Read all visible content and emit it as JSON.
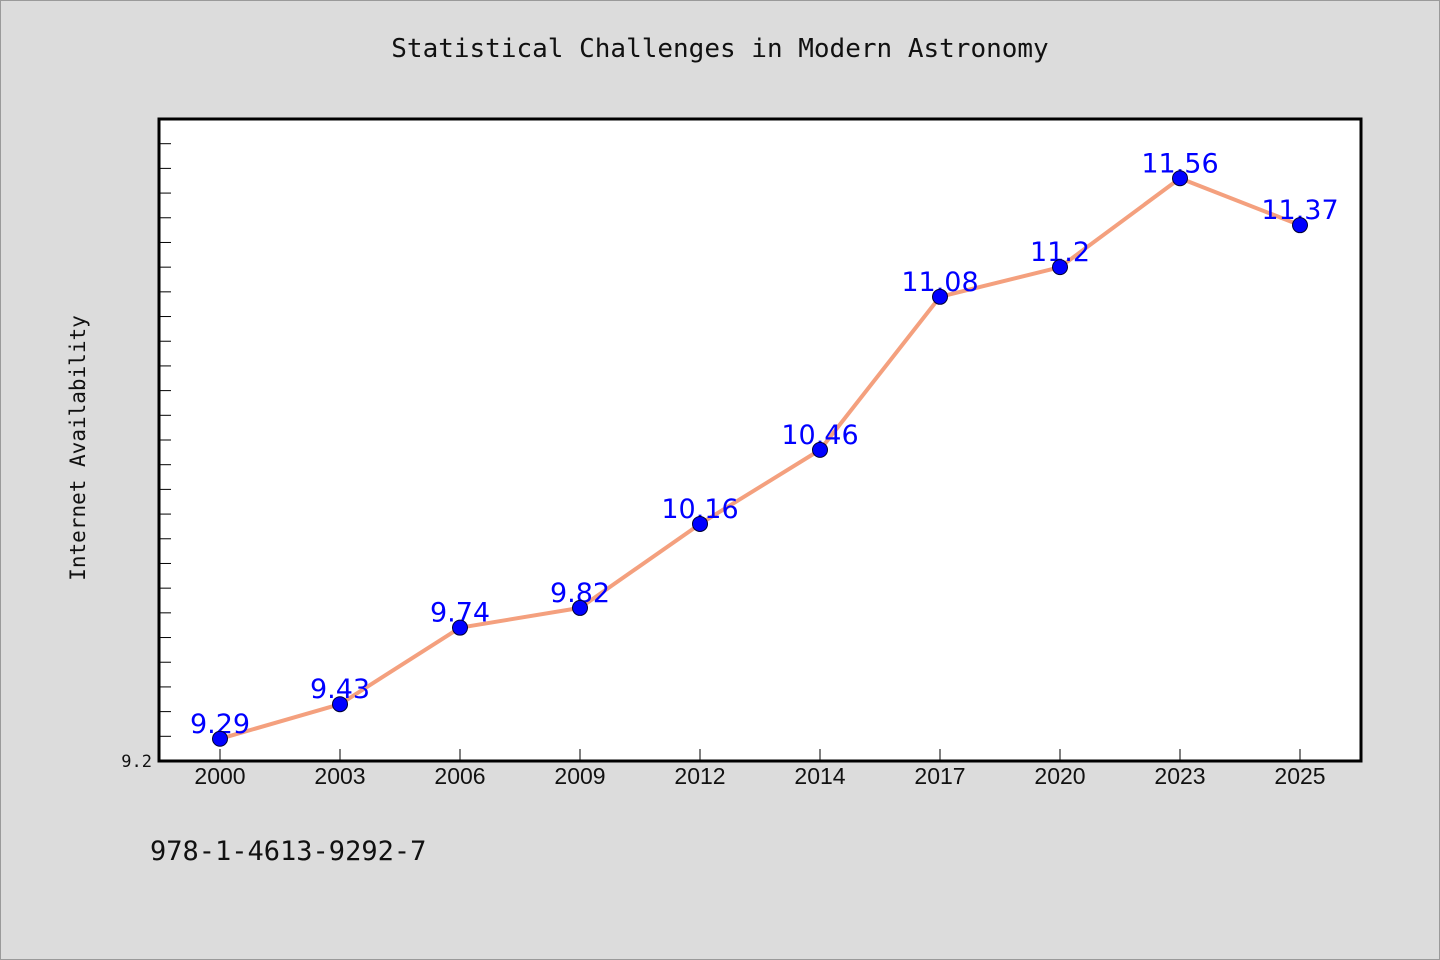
{
  "chart_data": {
    "type": "line",
    "title": "Statistical Challenges in Modern Astronomy",
    "xlabel": "",
    "ylabel": "Internet Availability",
    "categories": [
      "2000",
      "2003",
      "2006",
      "2009",
      "2012",
      "2014",
      "2017",
      "2020",
      "2023",
      "2025"
    ],
    "series": [
      {
        "values": [
          9.29,
          9.43,
          9.74,
          9.82,
          10.16,
          10.46,
          11.08,
          11.2,
          11.56,
          11.37
        ],
        "data_labels": [
          "9.29",
          "9.43",
          "9.74",
          "9.82",
          "10.16",
          "10.46",
          "11.08",
          "11.2",
          "11.56",
          "11.37"
        ]
      }
    ],
    "ylim": [
      9.2,
      11.8
    ],
    "y_tick_labels": [
      "9.2"
    ],
    "grid": false,
    "legend": "none",
    "colors": {
      "line": "#f4a07e",
      "marker": "#0000ff",
      "data_label": "#0000ff",
      "plot_bg": "#ffffff",
      "page_bg": "#dcdcdc"
    }
  },
  "footer": {
    "id_text": "978-1-4613-9292-7"
  }
}
